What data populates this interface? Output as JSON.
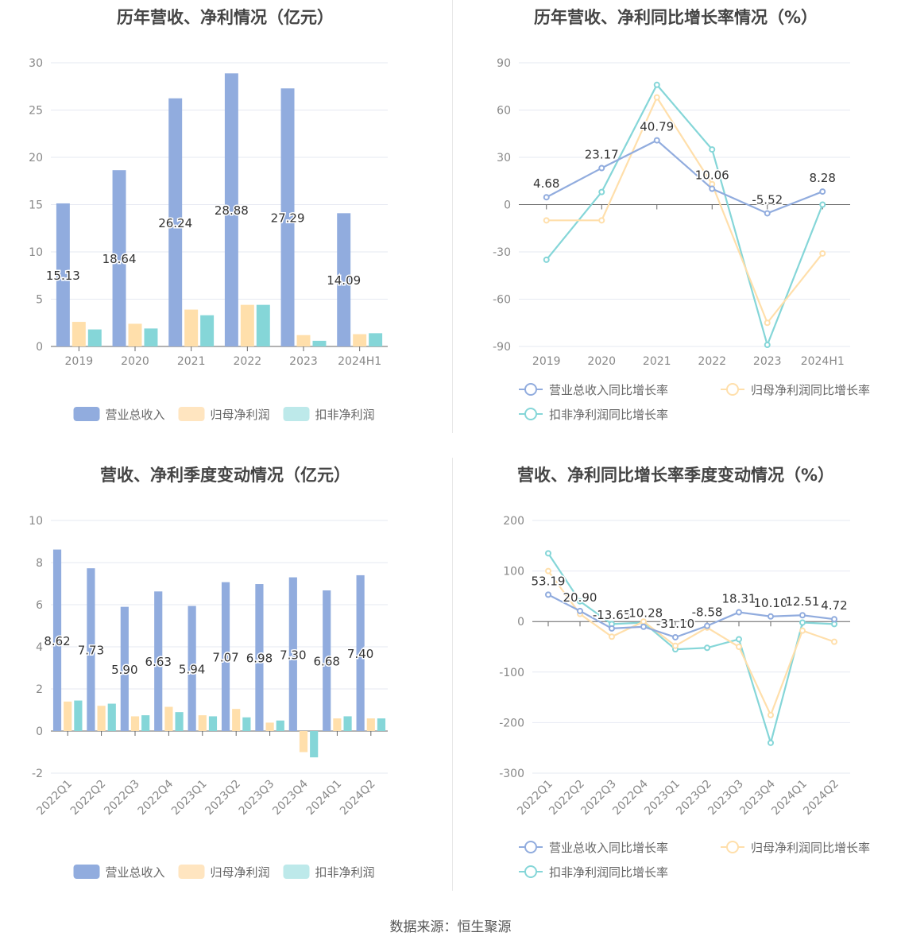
{
  "source": "数据来源：恒生聚源",
  "colors": {
    "revenue": "#91acde",
    "net_profit": "#ffdfab",
    "deducted_profit": "#85d6d8"
  },
  "chart_data": [
    {
      "type": "bar",
      "title": "历年营收、净利情况（亿元）",
      "categories": [
        "2019",
        "2020",
        "2021",
        "2022",
        "2023",
        "2024H1"
      ],
      "ylim": [
        0,
        30
      ],
      "yticks": [
        0,
        5,
        10,
        15,
        20,
        25,
        30
      ],
      "series": [
        {
          "name": "营业总收入",
          "values": [
            15.13,
            18.64,
            26.24,
            28.88,
            27.29,
            14.09
          ],
          "labels": [
            "15.13",
            "18.64",
            "26.24",
            "28.88",
            "27.29",
            "14.09"
          ]
        },
        {
          "name": "归母净利润",
          "values": [
            2.6,
            2.4,
            3.9,
            4.4,
            1.2,
            1.3
          ]
        },
        {
          "name": "扣非净利润",
          "values": [
            1.8,
            1.9,
            3.3,
            4.4,
            0.6,
            1.4
          ]
        }
      ],
      "legend_position": "bottom",
      "grid": true
    },
    {
      "type": "line",
      "title": "历年营收、净利同比增长率情况（%）",
      "categories": [
        "2019",
        "2020",
        "2021",
        "2022",
        "2023",
        "2024H1"
      ],
      "ylim": [
        -90,
        90
      ],
      "yticks": [
        -90,
        -60,
        -30,
        0,
        30,
        60,
        90
      ],
      "series": [
        {
          "name": "营业总收入同比增长率",
          "values": [
            4.68,
            23.17,
            40.79,
            10.06,
            -5.52,
            8.28
          ],
          "labels": [
            "4.68",
            "23.17",
            "40.79",
            "10.06",
            "-5.52",
            "8.28"
          ]
        },
        {
          "name": "归母净利润同比增长率",
          "values": [
            -10,
            -10,
            68,
            13,
            -75,
            -31
          ]
        },
        {
          "name": "扣非净利润同比增长率",
          "values": [
            -35,
            8,
            76,
            35,
            -89,
            0
          ]
        }
      ],
      "legend_position": "bottom",
      "grid": true
    },
    {
      "type": "bar",
      "title": "营收、净利季度变动情况（亿元）",
      "categories": [
        "2022Q1",
        "2022Q2",
        "2022Q3",
        "2022Q4",
        "2023Q1",
        "2023Q2",
        "2023Q3",
        "2023Q4",
        "2024Q1",
        "2024Q2"
      ],
      "ylim": [
        -2,
        10
      ],
      "yticks": [
        -2,
        0,
        2,
        4,
        6,
        8,
        10
      ],
      "series": [
        {
          "name": "营业总收入",
          "values": [
            8.62,
            7.73,
            5.9,
            6.63,
            5.94,
            7.07,
            6.98,
            7.3,
            6.68,
            7.4
          ],
          "labels": [
            "8.62",
            "7.73",
            "5.90",
            "6.63",
            "5.94",
            "7.07",
            "6.98",
            "7.30",
            "6.68",
            "7.40"
          ]
        },
        {
          "name": "归母净利润",
          "values": [
            1.4,
            1.2,
            0.7,
            1.15,
            0.75,
            1.05,
            0.4,
            -1.0,
            0.6,
            0.6
          ]
        },
        {
          "name": "扣非净利润",
          "values": [
            1.45,
            1.3,
            0.75,
            0.9,
            0.7,
            0.65,
            0.5,
            -1.25,
            0.7,
            0.6
          ]
        }
      ],
      "legend_position": "bottom",
      "grid": true
    },
    {
      "type": "line",
      "title": "营收、净利同比增长率季度变动情况（%）",
      "categories": [
        "2022Q1",
        "2022Q2",
        "2022Q3",
        "2022Q4",
        "2023Q1",
        "2023Q2",
        "2023Q3",
        "2023Q4",
        "2024Q1",
        "2024Q2"
      ],
      "ylim": [
        -300,
        200
      ],
      "yticks": [
        -300,
        -200,
        -100,
        0,
        100,
        200
      ],
      "series": [
        {
          "name": "营业总收入同比增长率",
          "values": [
            53.19,
            20.9,
            -13.65,
            -10.28,
            -31.1,
            -8.58,
            18.31,
            10.1,
            12.51,
            4.72
          ],
          "labels": [
            "53.19",
            "20.90",
            "-13.65",
            "-10.28",
            "-31.10",
            "-8.58",
            "18.31",
            "10.10",
            "12.51",
            "4.72"
          ]
        },
        {
          "name": "归母净利润同比增长率",
          "values": [
            100,
            15,
            -30,
            0,
            -48,
            -12,
            -50,
            -185,
            -18,
            -40
          ]
        },
        {
          "name": "扣非净利润同比增长率",
          "values": [
            135,
            40,
            -5,
            -2,
            -55,
            -52,
            -35,
            -240,
            -2,
            -5
          ]
        }
      ],
      "legend_position": "bottom",
      "grid": true
    }
  ]
}
